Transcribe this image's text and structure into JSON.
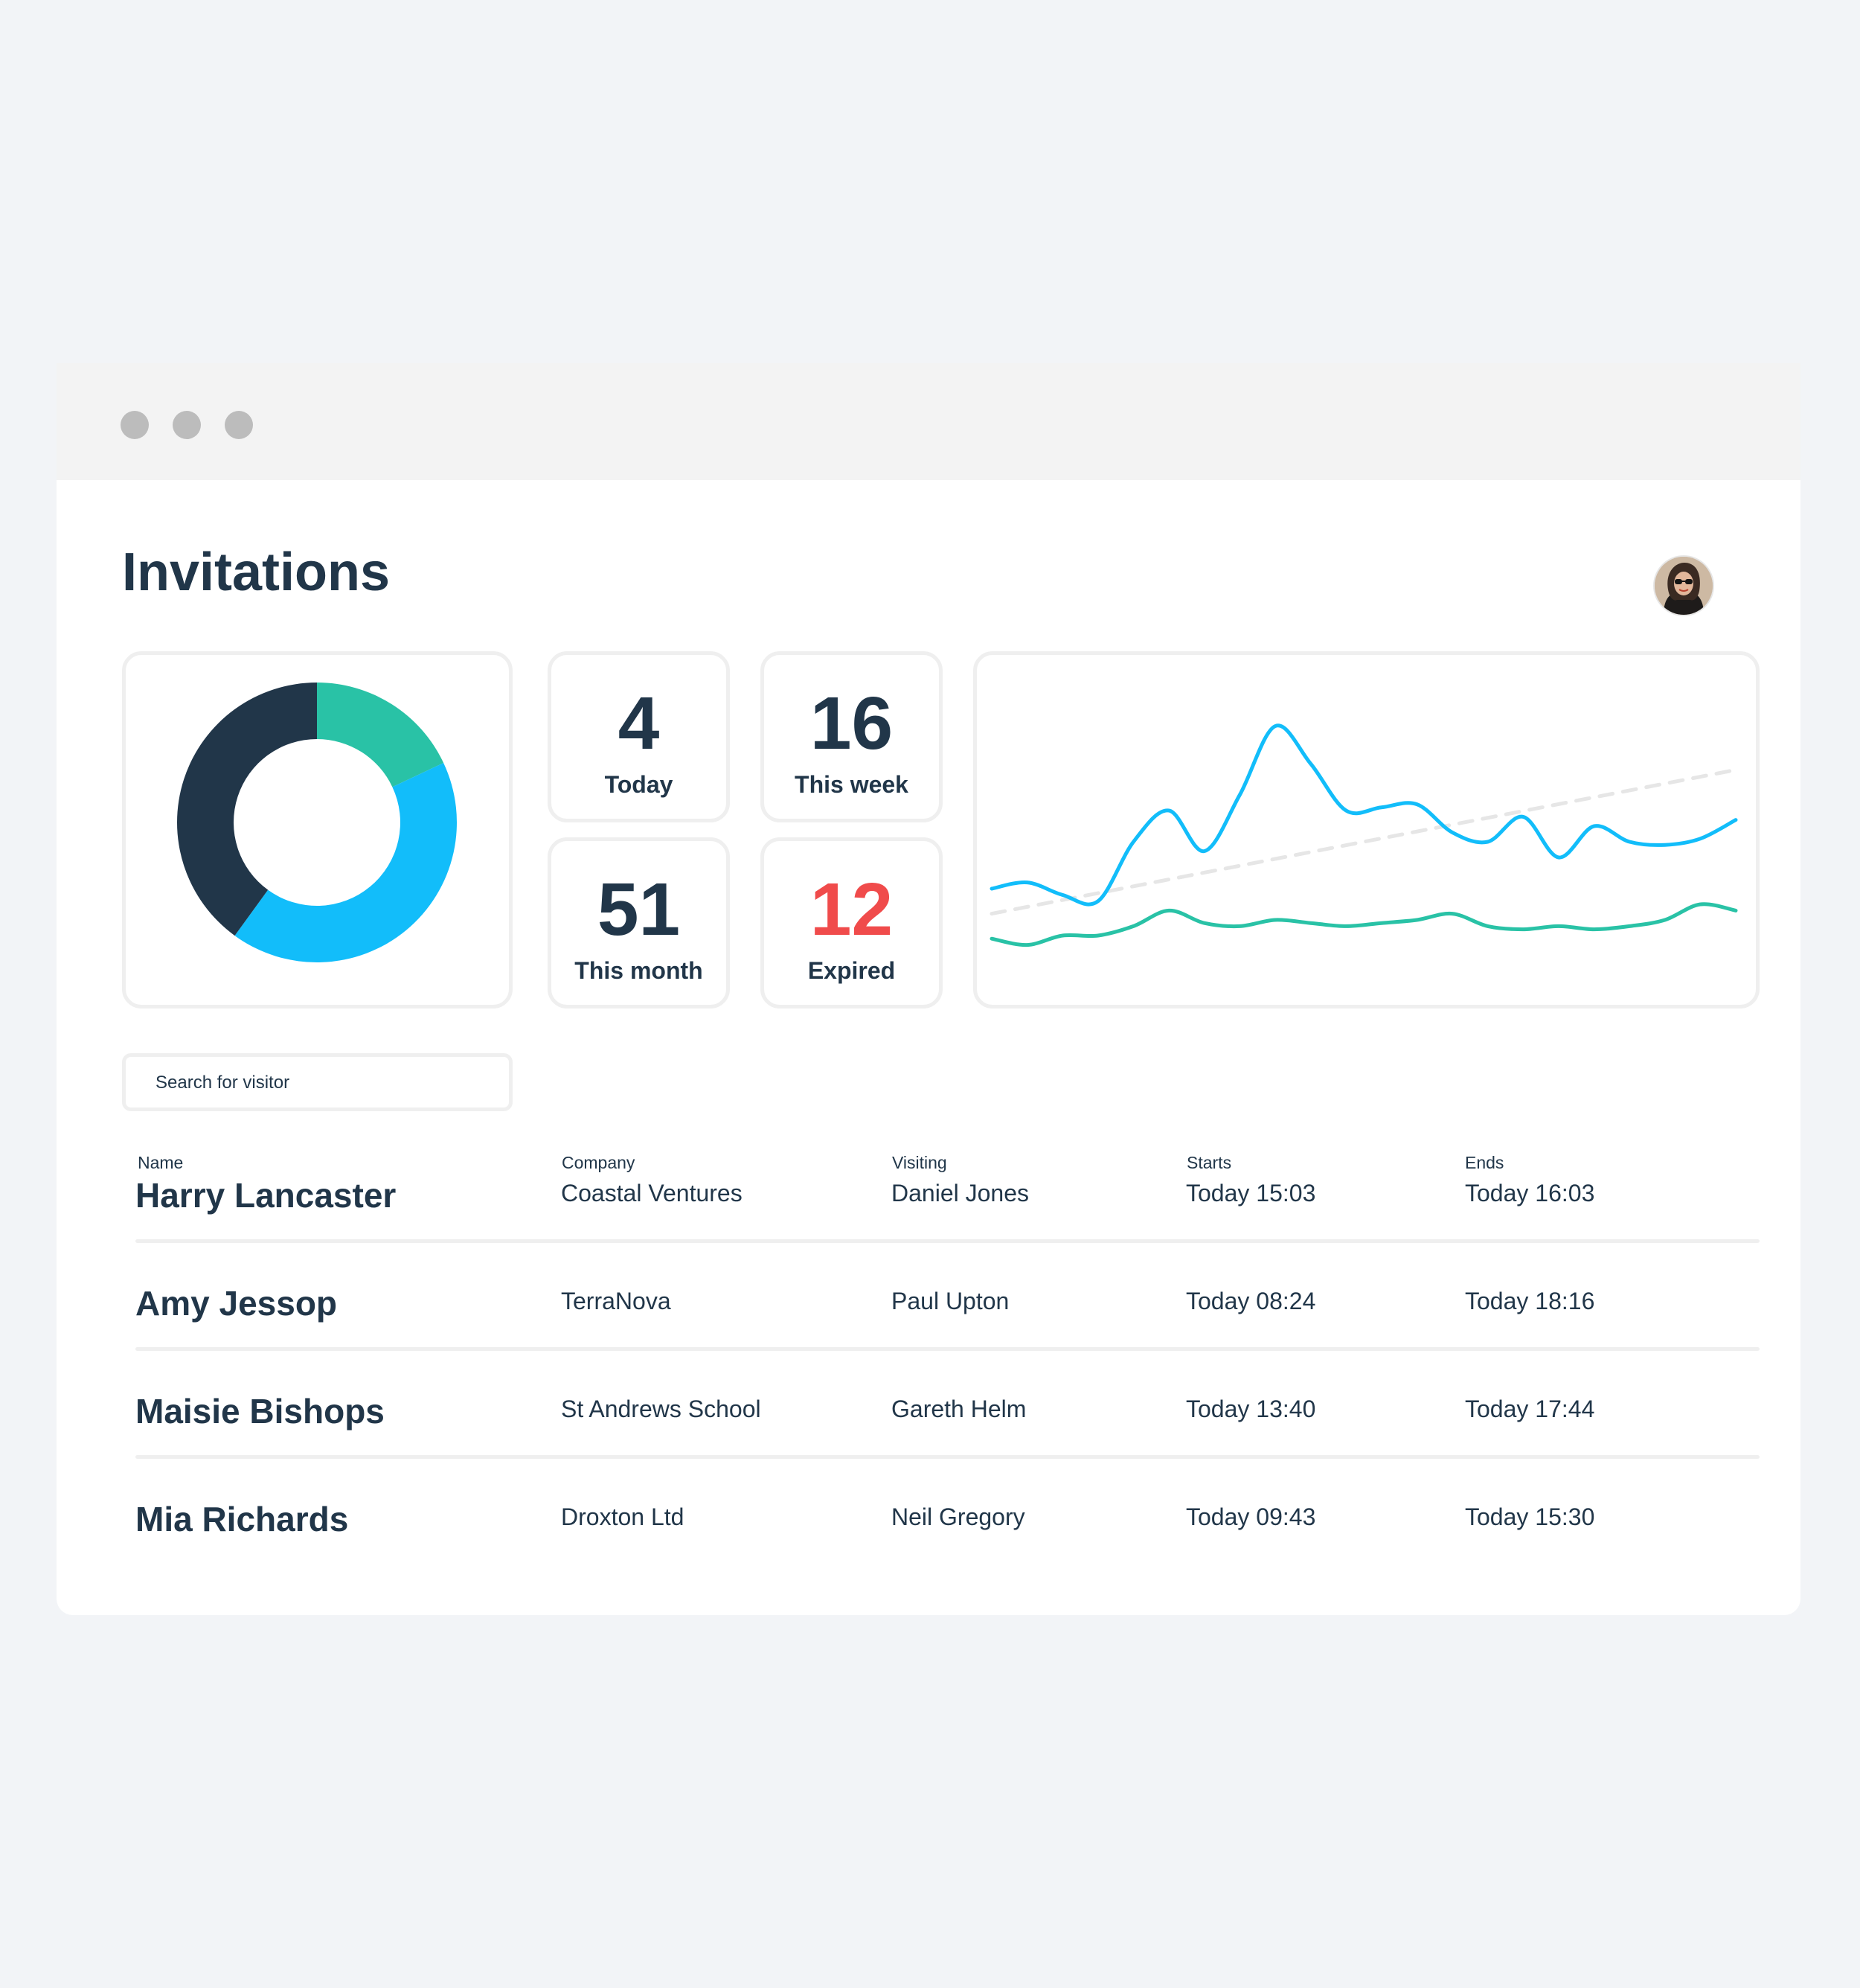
{
  "page": {
    "title": "Invitations"
  },
  "stats": [
    {
      "value": "4",
      "label": "Today"
    },
    {
      "value": "16",
      "label": "This week"
    },
    {
      "value": "51",
      "label": "This month"
    },
    {
      "value": "12",
      "label": "Expired"
    }
  ],
  "colors": {
    "navy": "#213649",
    "blue": "#12bdfa",
    "teal": "#29c2a6",
    "alert": "#f04b4b",
    "trend": "#e6e6e6"
  },
  "search": {
    "placeholder": "Search for visitor"
  },
  "table": {
    "headers": [
      "Name",
      "Company",
      "Visiting",
      "Starts",
      "Ends"
    ],
    "rows": [
      [
        "Harry Lancaster",
        "Coastal Ventures",
        "Daniel Jones",
        "Today 15:03",
        "Today 16:03"
      ],
      [
        "Amy Jessop",
        "TerraNova",
        "Paul Upton",
        "Today 08:24",
        "Today 18:16"
      ],
      [
        "Maisie Bishops",
        "St Andrews School",
        "Gareth Helm",
        "Today 13:40",
        "Today 17:44"
      ],
      [
        "Mia Richards",
        "Droxton Ltd",
        "Neil Gregory",
        "Today 09:43",
        "Today 15:30"
      ]
    ]
  },
  "chart_data": [
    {
      "type": "pie",
      "donut": true,
      "slices": [
        {
          "value": 18,
          "color": "#29c2a6"
        },
        {
          "value": 42,
          "color": "#12bdfa"
        },
        {
          "value": 40,
          "color": "#213649"
        }
      ]
    },
    {
      "type": "line",
      "grid": false,
      "x": [
        0,
        1,
        2,
        3,
        4,
        5,
        6,
        7,
        8,
        9,
        10,
        11,
        12,
        13,
        14,
        15,
        16,
        17,
        18,
        19,
        20,
        21
      ],
      "ylim": [
        0,
        100
      ],
      "series": [
        {
          "color": "#12bdfa",
          "values": [
            30,
            32,
            28,
            26,
            45,
            55,
            42,
            60,
            82,
            70,
            55,
            56,
            57,
            48,
            45,
            53,
            40,
            50,
            45,
            44,
            46,
            52
          ]
        },
        {
          "color": "#29c2a6",
          "values": [
            14,
            12,
            15,
            15,
            18,
            23,
            19,
            18,
            20,
            19,
            18,
            19,
            20,
            22,
            18,
            17,
            18,
            17,
            18,
            20,
            25,
            23
          ]
        },
        {
          "color": "#e6e6e6",
          "dashed": true,
          "values": [
            22,
            24,
            26,
            28,
            31,
            33,
            35,
            37,
            39,
            41,
            43,
            46,
            48,
            50,
            52,
            55,
            57,
            59,
            62,
            64,
            66,
            68
          ]
        }
      ]
    }
  ]
}
